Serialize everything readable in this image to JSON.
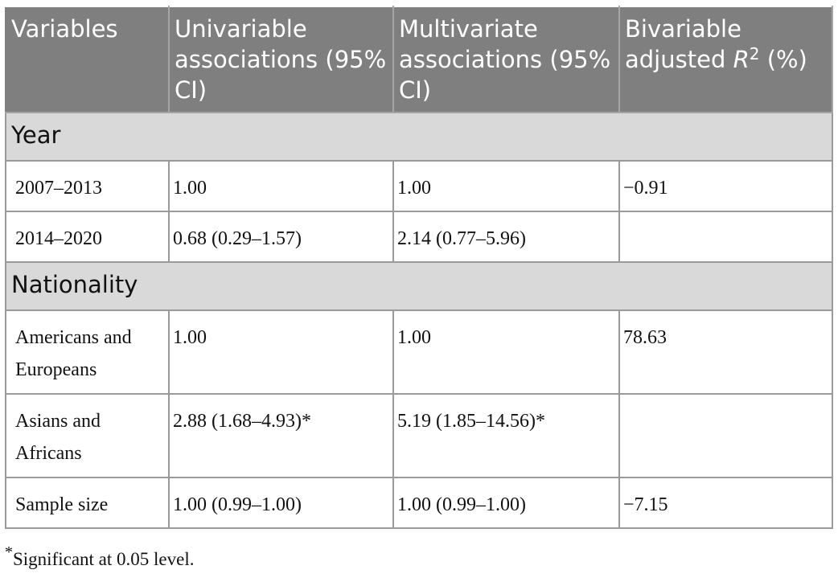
{
  "table": {
    "headers": {
      "col1": "Variables",
      "col2": "Univariable associations (95% CI)",
      "col3": "Multivariate associations (95% CI)",
      "col4_prefix": "Bivariable adjusted",
      "col4_symbol": "R",
      "col4_exponent": "2",
      "col4_suffix": "(%)"
    },
    "sections": {
      "year": "Year",
      "nationality": "Nationality"
    },
    "rows": {
      "y2007": {
        "variable": "2007–2013",
        "univariable": "1.00",
        "multivariate": "1.00",
        "r2": "−0.91"
      },
      "y2014": {
        "variable": "2014–2020",
        "univariable": "0.68 (0.29–1.57)",
        "multivariate": "2.14 (0.77–5.96)",
        "r2": ""
      },
      "americans": {
        "variable": "Americans and Europeans",
        "univariable": "1.00",
        "multivariate": "1.00",
        "r2": "78.63"
      },
      "asians": {
        "variable": "Asians and Africans",
        "univariable": "2.88 (1.68–4.93)*",
        "multivariate": "5.19 (1.85–14.56)*",
        "r2": ""
      },
      "sample": {
        "variable": "Sample size",
        "univariable": "1.00 (0.99–1.00)",
        "multivariate": "1.00 (0.99–1.00)",
        "r2": "−7.15"
      }
    }
  },
  "footnote": {
    "marker": "*",
    "text": "Significant at 0.05 level."
  }
}
